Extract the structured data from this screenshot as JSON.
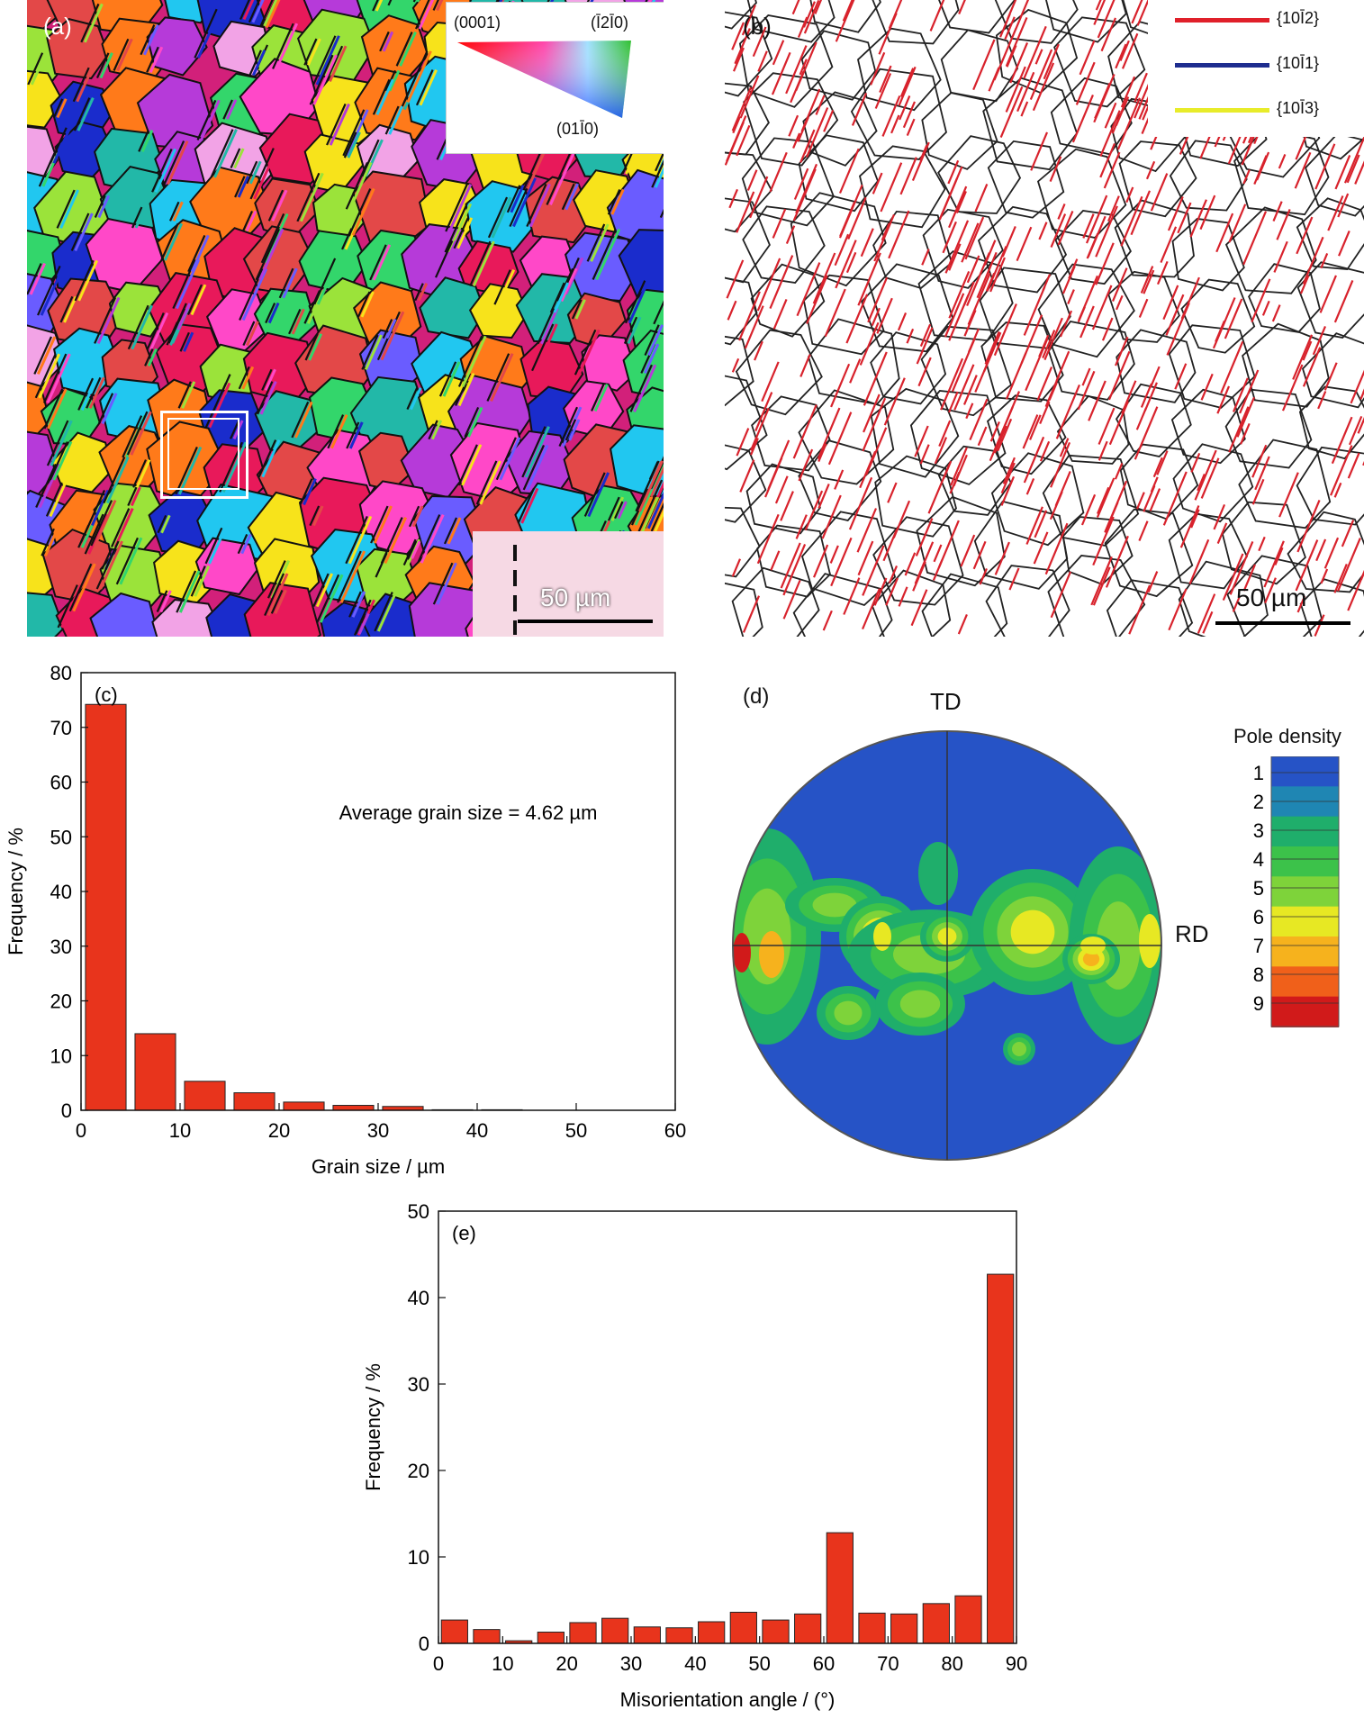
{
  "figure": {
    "panel_a": {
      "label": "(a)",
      "ipf_legend": {
        "corner_basal": "(0001)",
        "corner_top_right": "(Ī2Ī0)",
        "corner_bottom": "(01Ī0)"
      },
      "scale_bar": "50 µm",
      "colors": [
        "#e8195a",
        "#1a2ccc",
        "#21c7f0",
        "#33d66b",
        "#f7e31b",
        "#ff7a1a",
        "#b63ad9",
        "#ff48c8",
        "#9be33a",
        "#6a5cff",
        "#e34848",
        "#22b8a8",
        "#f2a3e6",
        "#ffffff"
      ]
    },
    "panel_b": {
      "label": "(b)",
      "legend": [
        {
          "label": "{10Ī2}",
          "color": "#e0202a"
        },
        {
          "label": "{10Ī1}",
          "color": "#1e2d8f"
        },
        {
          "label": "{10Ī3}",
          "color": "#e8ec2a"
        }
      ],
      "scale_bar": "50 µm"
    },
    "panel_d": {
      "label": "(d)",
      "axis_top": "TD",
      "axis_right": "RD",
      "colorbar_title": "Pole density",
      "colorbar_ticks": [
        "1",
        "2",
        "3",
        "4",
        "5",
        "6",
        "7",
        "8",
        "9"
      ],
      "colormap": [
        "#2653c6",
        "#1f86b3",
        "#1fae6b",
        "#3cc24a",
        "#7ed33a",
        "#e7e823",
        "#f6b21d",
        "#f0601a",
        "#d11a1a"
      ]
    }
  },
  "chart_data": [
    {
      "type": "bar",
      "panel_label": "(c)",
      "xlabel": "Grain size / µm",
      "ylabel": "Frequency / %",
      "annotation": "Average grain size = 4.62 µm",
      "x": [
        2.5,
        7.5,
        12.5,
        17.5,
        22.5,
        27.5,
        32.5,
        37.5,
        42.5,
        47.5,
        52.5
      ],
      "values": [
        74.2,
        14.0,
        5.3,
        3.2,
        1.5,
        0.9,
        0.7,
        0.1,
        0.1,
        0.0,
        0.0
      ],
      "xlim": [
        0,
        60
      ],
      "ylim": [
        0,
        80
      ],
      "xticks": [
        0,
        10,
        20,
        30,
        40,
        50,
        60
      ],
      "yticks": [
        0,
        10,
        20,
        30,
        40,
        50,
        60,
        70,
        80
      ],
      "bar_color": "#e8341c"
    },
    {
      "type": "bar",
      "panel_label": "(e)",
      "xlabel": "Misorientation angle / (°)",
      "ylabel": "Frequency / %",
      "x": [
        2.5,
        7.5,
        12.5,
        17.5,
        22.5,
        27.5,
        32.5,
        37.5,
        42.5,
        47.5,
        52.5,
        57.5,
        62.5,
        67.5,
        72.5,
        77.5,
        82.5,
        87.5
      ],
      "values": [
        2.7,
        1.6,
        0.3,
        1.3,
        2.4,
        2.9,
        1.9,
        1.8,
        2.5,
        3.6,
        2.7,
        3.4,
        12.8,
        3.5,
        3.4,
        4.6,
        5.5,
        42.7
      ],
      "xlim": [
        0,
        90
      ],
      "ylim": [
        0,
        50
      ],
      "xticks": [
        0,
        10,
        20,
        30,
        40,
        50,
        60,
        70,
        80,
        90
      ],
      "yticks": [
        0,
        10,
        20,
        30,
        40,
        50
      ],
      "bar_color": "#e8341c"
    }
  ]
}
